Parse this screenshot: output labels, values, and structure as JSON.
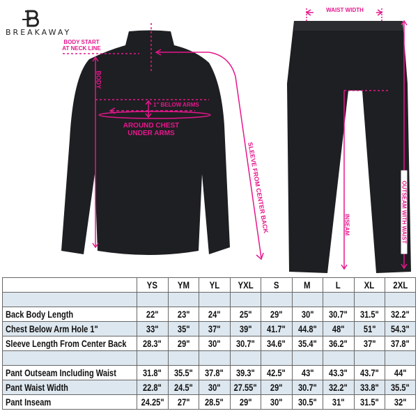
{
  "brand": {
    "name": "BREAKAWAY",
    "logo_letter": "B"
  },
  "annotations": {
    "body_start": "BODY START AT NECK LINE",
    "body": "BODY",
    "below_arms": "1\" BELOW ARMS",
    "around_chest": "AROUND CHEST UNDER ARMS",
    "sleeve": "SLEEVE FROM CENTER BACK",
    "waist_width": "WAIST WIDTH",
    "inseam": "INSEAM",
    "outseam": "OUTSEAM WITH WAIST"
  },
  "colors": {
    "accent": "#e6168c",
    "garment": "#1e1f22",
    "row_shade": "#dde7ef"
  },
  "size_table": {
    "sizes": [
      "YS",
      "YM",
      "YL",
      "YXL",
      "S",
      "M",
      "L",
      "XL",
      "2XL"
    ],
    "rows": [
      {
        "label": "",
        "values": [
          "",
          "",
          "",
          "",
          "",
          "",
          "",
          "",
          ""
        ],
        "shaded": true
      },
      {
        "label": "Back Body Length",
        "values": [
          "22\"",
          "23\"",
          "24\"",
          "25\"",
          "29\"",
          "30\"",
          "30.7\"",
          "31.5\"",
          "32.2\""
        ],
        "shaded": false
      },
      {
        "label": "Chest Below Arm Hole 1\"",
        "values": [
          "33\"",
          "35\"",
          "37\"",
          "39\"",
          "41.7\"",
          "44.8\"",
          "48\"",
          "51\"",
          "54.3\""
        ],
        "shaded": true
      },
      {
        "label": "Sleeve Length From Center Back",
        "values": [
          "28.3\"",
          "29\"",
          "30\"",
          "30.7\"",
          "34.6\"",
          "35.4\"",
          "36.2\"",
          "37\"",
          "37.8\""
        ],
        "shaded": false
      },
      {
        "label": "",
        "values": [
          "",
          "",
          "",
          "",
          "",
          "",
          "",
          "",
          ""
        ],
        "shaded": true
      },
      {
        "label": "Pant Outseam Including Waist",
        "values": [
          "31.8\"",
          "35.5\"",
          "37.8\"",
          "39.3\"",
          "42.5\"",
          "43\"",
          "43.3\"",
          "43.7\"",
          "44\""
        ],
        "shaded": false
      },
      {
        "label": "Pant Waist Width",
        "values": [
          "22.8\"",
          "24.5\"",
          "30\"",
          "27.55\"",
          "29\"",
          "30.7\"",
          "32.2\"",
          "33.8\"",
          "35.5\""
        ],
        "shaded": true
      },
      {
        "label": "Pant Inseam",
        "values": [
          "24.25\"",
          "27\"",
          "28.5\"",
          "29\"",
          "30\"",
          "30.5\"",
          "31\"",
          "31.5\"",
          "32\""
        ],
        "shaded": false
      }
    ]
  }
}
